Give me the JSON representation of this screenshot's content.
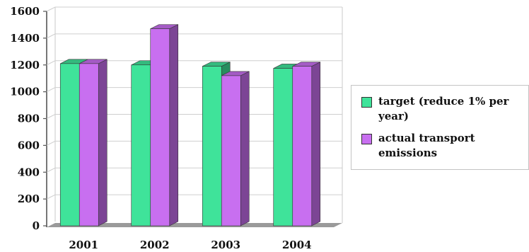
{
  "chart_data": {
    "type": "bar",
    "title": "",
    "xlabel": "",
    "ylabel": "",
    "categories": [
      "2001",
      "2002",
      "2003",
      "2004"
    ],
    "series": [
      {
        "name": "target (reduce 1% per year)",
        "values": [
          1210,
          1200,
          1190,
          1175
        ],
        "color": "#3fe39a"
      },
      {
        "name": "actual transport emissions",
        "values": [
          1210,
          1470,
          1120,
          1190
        ],
        "color": "#c86ff0"
      }
    ],
    "ylim": [
      0,
      1600
    ],
    "yticks": [
      "0",
      "200",
      "400",
      "600",
      "800",
      "1000",
      "1200",
      "1400",
      "1600"
    ],
    "grid": true,
    "legend_position": "right",
    "style": "3d"
  }
}
